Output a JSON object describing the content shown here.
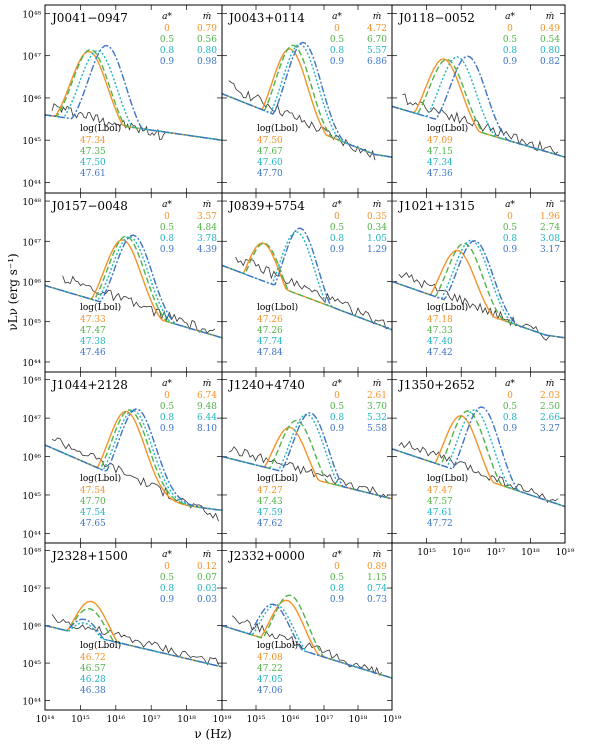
{
  "figure": {
    "xlabel": "ν (Hz)",
    "ylabel": "νLν (erg s⁻¹)"
  },
  "axes": {
    "x_ticks": [
      "10¹⁴",
      "10¹⁵",
      "10¹⁶",
      "10¹⁷",
      "10¹⁸",
      "10¹⁹"
    ],
    "y_ticks": [
      "10⁴⁴",
      "10⁴⁵",
      "10⁴⁶",
      "10⁴⁷",
      "10⁴⁸"
    ],
    "x_log_range": [
      14,
      19
    ],
    "y_log_range": [
      43.75,
      48.2
    ]
  },
  "table_headers": {
    "spin": "a*",
    "mdot": "ṁ",
    "lbol": "log(Lbol)"
  },
  "series_colors": [
    "#f5932a",
    "#52b348",
    "#1fb5c0",
    "#3d73c6"
  ],
  "spin_values": [
    "0",
    "0.5",
    "0.8",
    "0.9"
  ],
  "chart_data": [
    {
      "type": "line",
      "object": "J0041−0947",
      "mdot": [
        "0.79",
        "0.56",
        "0.80",
        "0.98"
      ],
      "log_Lbol": [
        "47.34",
        "47.35",
        "47.50",
        "47.61"
      ],
      "peaks": [
        {
          "x": 15.25,
          "y": 46.95
        },
        {
          "x": 15.3,
          "y": 47.0
        },
        {
          "x": 15.5,
          "y": 47.0
        },
        {
          "x": 15.75,
          "y": 47.15
        }
      ],
      "data": {
        "x": [
          14.2,
          17.4
        ],
        "y": [
          45.8,
          45.1
        ]
      }
    },
    {
      "type": "line",
      "object": "J0043+0114",
      "mdot": [
        "4.72",
        "6.70",
        "5.57",
        "6.86"
      ],
      "log_Lbol": [
        "47.50",
        "47.67",
        "47.60",
        "47.70"
      ],
      "peaks": [
        {
          "x": 16.0,
          "y": 47.1
        },
        {
          "x": 16.1,
          "y": 47.2
        },
        {
          "x": 16.3,
          "y": 47.25
        },
        {
          "x": 16.4,
          "y": 47.3
        }
      ],
      "data": {
        "x": [
          14.2,
          18.5
        ],
        "y": [
          46.3,
          44.6
        ]
      }
    },
    {
      "type": "line",
      "object": "J0118−0052",
      "mdot": [
        "0.49",
        "0.54",
        "0.80",
        "0.82"
      ],
      "log_Lbol": [
        "47.09",
        "47.15",
        "47.34",
        "47.36"
      ],
      "peaks": [
        {
          "x": 15.5,
          "y": 46.8
        },
        {
          "x": 15.6,
          "y": 46.8
        },
        {
          "x": 15.9,
          "y": 46.9
        },
        {
          "x": 16.2,
          "y": 46.95
        }
      ],
      "data": {
        "x": [
          14.3,
          18.8
        ],
        "y": [
          46.0,
          44.7
        ]
      }
    },
    {
      "type": "line",
      "object": "J0157−0048",
      "mdot": [
        "3.57",
        "4.84",
        "3.78",
        "4.39"
      ],
      "log_Lbol": [
        "47.33",
        "47.47",
        "47.38",
        "47.46"
      ],
      "peaks": [
        {
          "x": 16.2,
          "y": 47.0
        },
        {
          "x": 16.3,
          "y": 47.1
        },
        {
          "x": 16.4,
          "y": 47.1
        },
        {
          "x": 16.5,
          "y": 47.15
        }
      ],
      "data": {
        "x": [
          14.5,
          18.8
        ],
        "y": [
          46.1,
          44.7
        ]
      }
    },
    {
      "type": "line",
      "object": "J0839+5754",
      "mdot": [
        "0.35",
        "0.34",
        "1.05",
        "1.29"
      ],
      "log_Lbol": [
        "47.26",
        "47.26",
        "47.74",
        "47.84"
      ],
      "peaks": [
        {
          "x": 15.2,
          "y": 46.8
        },
        {
          "x": 15.25,
          "y": 46.8
        },
        {
          "x": 16.2,
          "y": 47.2
        },
        {
          "x": 16.3,
          "y": 47.3
        }
      ],
      "data": {
        "x": [
          14.4,
          18.9
        ],
        "y": [
          46.6,
          44.9
        ]
      }
    },
    {
      "type": "line",
      "object": "J1021+1315",
      "mdot": [
        "1.96",
        "2.74",
        "3.08",
        "3.17"
      ],
      "log_Lbol": [
        "47.18",
        "47.33",
        "47.40",
        "47.42"
      ],
      "peaks": [
        {
          "x": 15.9,
          "y": 46.7
        },
        {
          "x": 16.1,
          "y": 46.9
        },
        {
          "x": 16.3,
          "y": 47.0
        },
        {
          "x": 16.4,
          "y": 47.0
        }
      ],
      "data": {
        "x": [
          14.2,
          18.6
        ],
        "y": [
          46.2,
          44.6
        ]
      }
    },
    {
      "type": "line",
      "object": "J1044+2128",
      "mdot": [
        "6.74",
        "9.48",
        "6.44",
        "8.10"
      ],
      "log_Lbol": [
        "47.54",
        "47.70",
        "47.54",
        "47.65"
      ],
      "peaks": [
        {
          "x": 16.3,
          "y": 47.15
        },
        {
          "x": 16.4,
          "y": 47.2
        },
        {
          "x": 16.5,
          "y": 47.2
        },
        {
          "x": 16.6,
          "y": 47.25
        }
      ],
      "data": {
        "x": [
          14.2,
          18.9
        ],
        "y": [
          46.5,
          44.4
        ]
      }
    },
    {
      "type": "line",
      "object": "J1240+4740",
      "mdot": [
        "2.61",
        "3.70",
        "5.32",
        "5.58"
      ],
      "log_Lbol": [
        "47.27",
        "47.43",
        "47.59",
        "47.62"
      ],
      "peaks": [
        {
          "x": 16.0,
          "y": 46.7
        },
        {
          "x": 16.2,
          "y": 46.9
        },
        {
          "x": 16.5,
          "y": 47.1
        },
        {
          "x": 16.6,
          "y": 47.15
        }
      ],
      "data": {
        "x": [
          14.2,
          18.9
        ],
        "y": [
          46.2,
          45.0
        ]
      }
    },
    {
      "type": "line",
      "object": "J1350+2652",
      "mdot": [
        "2.03",
        "2.50",
        "2.66",
        "3.27"
      ],
      "log_Lbol": [
        "47.47",
        "47.57",
        "47.61",
        "47.72"
      ],
      "peaks": [
        {
          "x": 16.0,
          "y": 47.0
        },
        {
          "x": 16.2,
          "y": 47.15
        },
        {
          "x": 16.4,
          "y": 47.2
        },
        {
          "x": 16.6,
          "y": 47.3
        }
      ],
      "data": {
        "x": [
          14.2,
          18.8
        ],
        "y": [
          46.4,
          44.8
        ]
      }
    },
    {
      "type": "line",
      "object": "J2328+1500",
      "mdot": [
        "0.12",
        "0.07",
        "0.03",
        "0.03"
      ],
      "log_Lbol": [
        "46.72",
        "46.57",
        "46.28",
        "46.38"
      ],
      "peaks": [
        {
          "x": 15.3,
          "y": 46.5
        },
        {
          "x": 15.25,
          "y": 46.3
        },
        {
          "x": 15.1,
          "y": 45.9
        },
        {
          "x": 15.1,
          "y": 46.0
        }
      ],
      "data": {
        "x": [
          14.2,
          18.9
        ],
        "y": [
          46.2,
          45.0
        ]
      }
    },
    {
      "type": "line",
      "object": "J2332+0000",
      "mdot": [
        "0.89",
        "1.15",
        "0.74",
        "0.73"
      ],
      "log_Lbol": [
        "47.08",
        "47.22",
        "47.05",
        "47.06"
      ],
      "peaks": [
        {
          "x": 15.9,
          "y": 46.6
        },
        {
          "x": 16.0,
          "y": 46.75
        },
        {
          "x": 15.6,
          "y": 46.45
        },
        {
          "x": 15.5,
          "y": 46.45
        }
      ],
      "data": {
        "x": [
          14.3,
          18.7
        ],
        "y": [
          46.2,
          44.7
        ]
      }
    }
  ]
}
